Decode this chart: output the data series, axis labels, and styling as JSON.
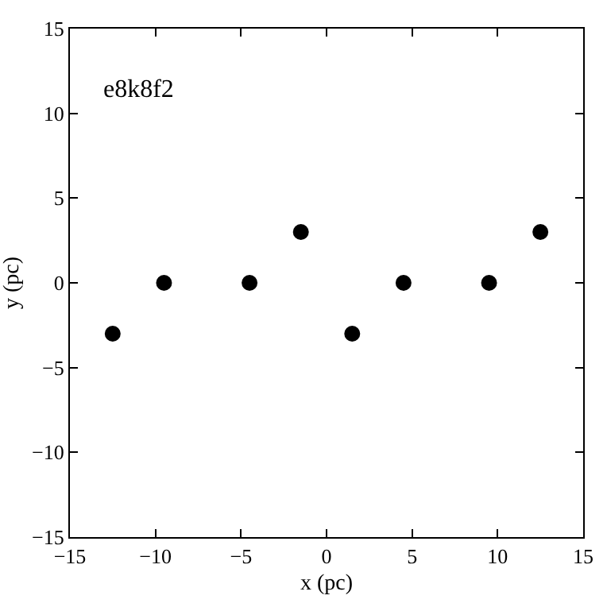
{
  "chart_data": {
    "type": "scatter",
    "x": [
      -12.5,
      -9.5,
      -4.5,
      -1.5,
      1.5,
      4.5,
      9.5,
      12.5
    ],
    "values": [
      -3,
      0,
      0,
      3,
      -3,
      0,
      0,
      3
    ],
    "color": "#000000",
    "marker": "circle",
    "xlabel": "x (pc)",
    "ylabel": "y (pc)",
    "annotations": [
      "e8k8f2"
    ],
    "xlim": [
      -15,
      15
    ],
    "ylim": [
      -15,
      15
    ],
    "xticks": [
      {
        "value": -15,
        "label": "−15"
      },
      {
        "value": -10,
        "label": "−10"
      },
      {
        "value": -5,
        "label": "−5"
      },
      0,
      5,
      10,
      15
    ],
    "yticks": [
      {
        "value": -15,
        "label": "−15"
      },
      {
        "value": -10,
        "label": "−10"
      },
      {
        "value": -5,
        "label": "−5"
      },
      0,
      5,
      10,
      15
    ],
    "line_style": "none"
  }
}
